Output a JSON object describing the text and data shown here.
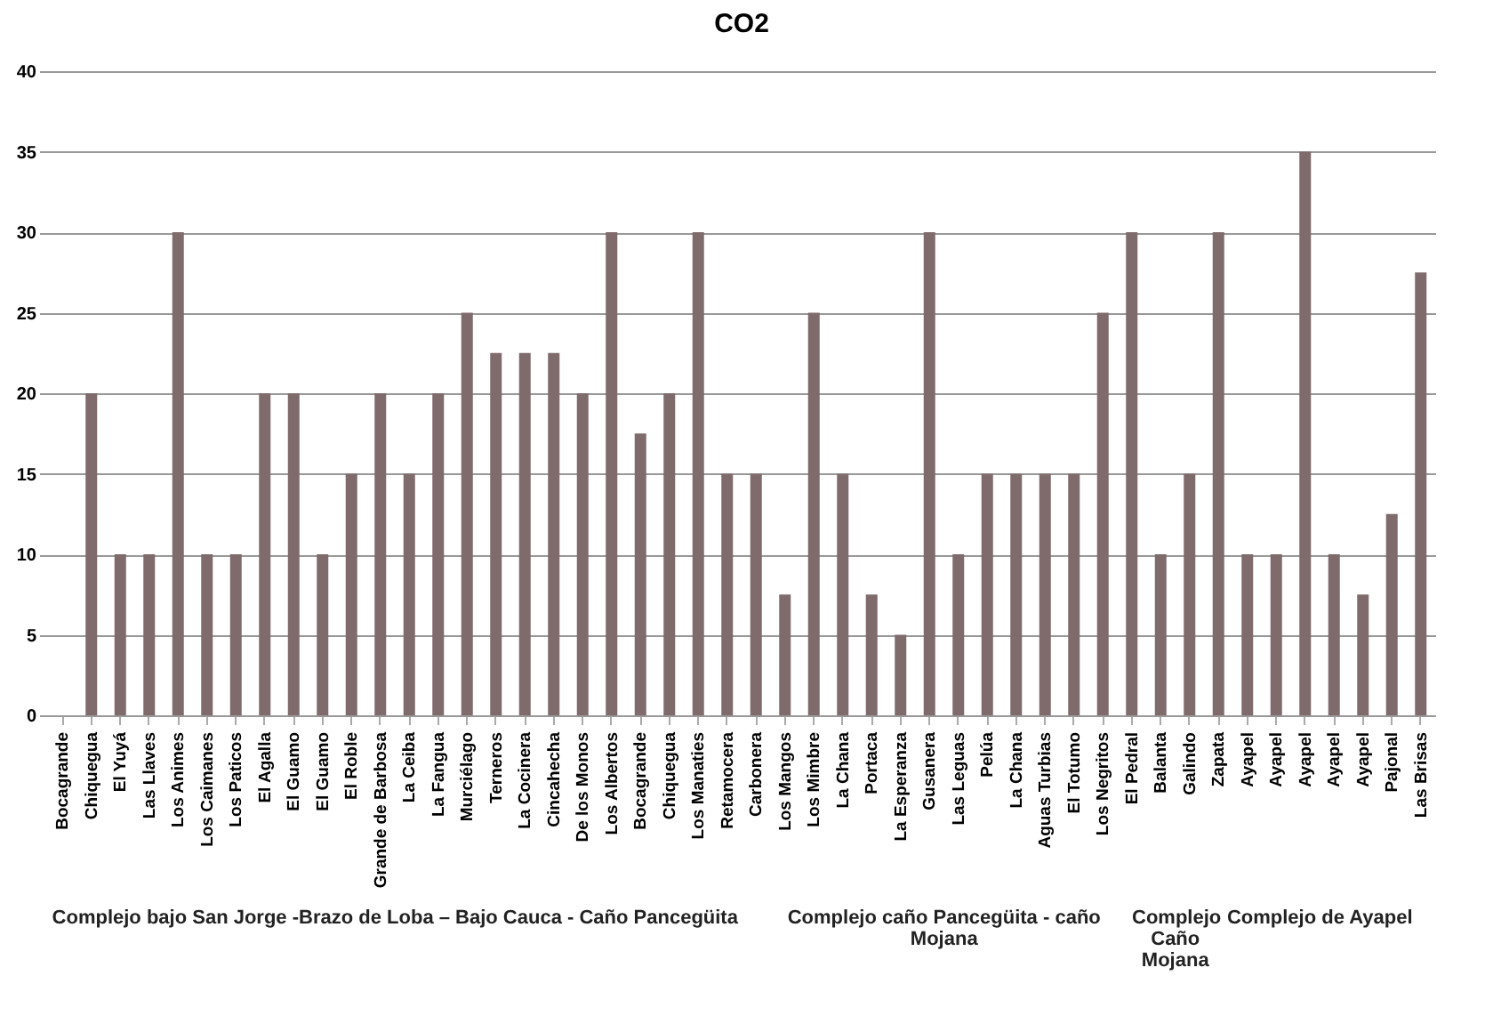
{
  "chart_data": {
    "type": "bar",
    "title": "CO2",
    "categories": [
      "Bocagrande",
      "Chiquegua",
      "El Yuyá",
      "Las Llaves",
      "Los Animes",
      "Los Caimanes",
      "Los Paticos",
      "El Agalla",
      "El Guamo",
      "El Guamo",
      "El Roble",
      "Grande de Barbosa",
      "La Ceiba",
      "La Fangua",
      "Murciélago",
      "Terneros",
      "La Cocinera",
      "Cincahecha",
      "De los Monos",
      "Los Albertos",
      "Bocagrande",
      "Chiquegua",
      "Los Manaties",
      "Retamocera",
      "Carbonera",
      "Los Mangos",
      "Los Mimbre",
      "La Chana",
      "Portaca",
      "La Esperanza",
      "Gusanera",
      "Las Leguas",
      "Pelúa",
      "La Chana",
      "Aguas Turbias",
      "El Totumo",
      "Los Negritos",
      "El Pedral",
      "Balanta",
      "Galindo",
      "Zapata",
      "Ayapel",
      "Ayapel",
      "Ayapel",
      "Ayapel",
      "Ayapel",
      "Pajonal",
      "Las Brisas"
    ],
    "values": [
      null,
      20,
      10,
      10,
      30,
      10,
      10,
      20,
      20,
      10,
      15,
      20,
      15,
      20,
      25,
      22.5,
      22.5,
      22.5,
      20,
      30,
      17.5,
      20,
      30,
      15,
      15,
      7.5,
      25,
      15,
      7.5,
      5,
      30,
      10,
      15,
      15,
      15,
      15,
      25,
      30,
      10,
      15,
      30,
      10,
      10,
      35,
      10,
      7.5,
      12.5,
      27.5
    ],
    "color": "#7f6a6c",
    "ylim": [
      0,
      40
    ],
    "yticks": [
      0,
      5,
      10,
      15,
      20,
      25,
      30,
      35,
      40
    ],
    "grid": "y",
    "annotations": [
      "Complejo bajo San Jorge -Brazo de Loba – Bajo Cauca - Caño Pancegüita",
      "Complejo caño Pancegüita - caño Mojana",
      "Complejo Caño Mojana",
      "Complejo de Ayapel"
    ]
  }
}
